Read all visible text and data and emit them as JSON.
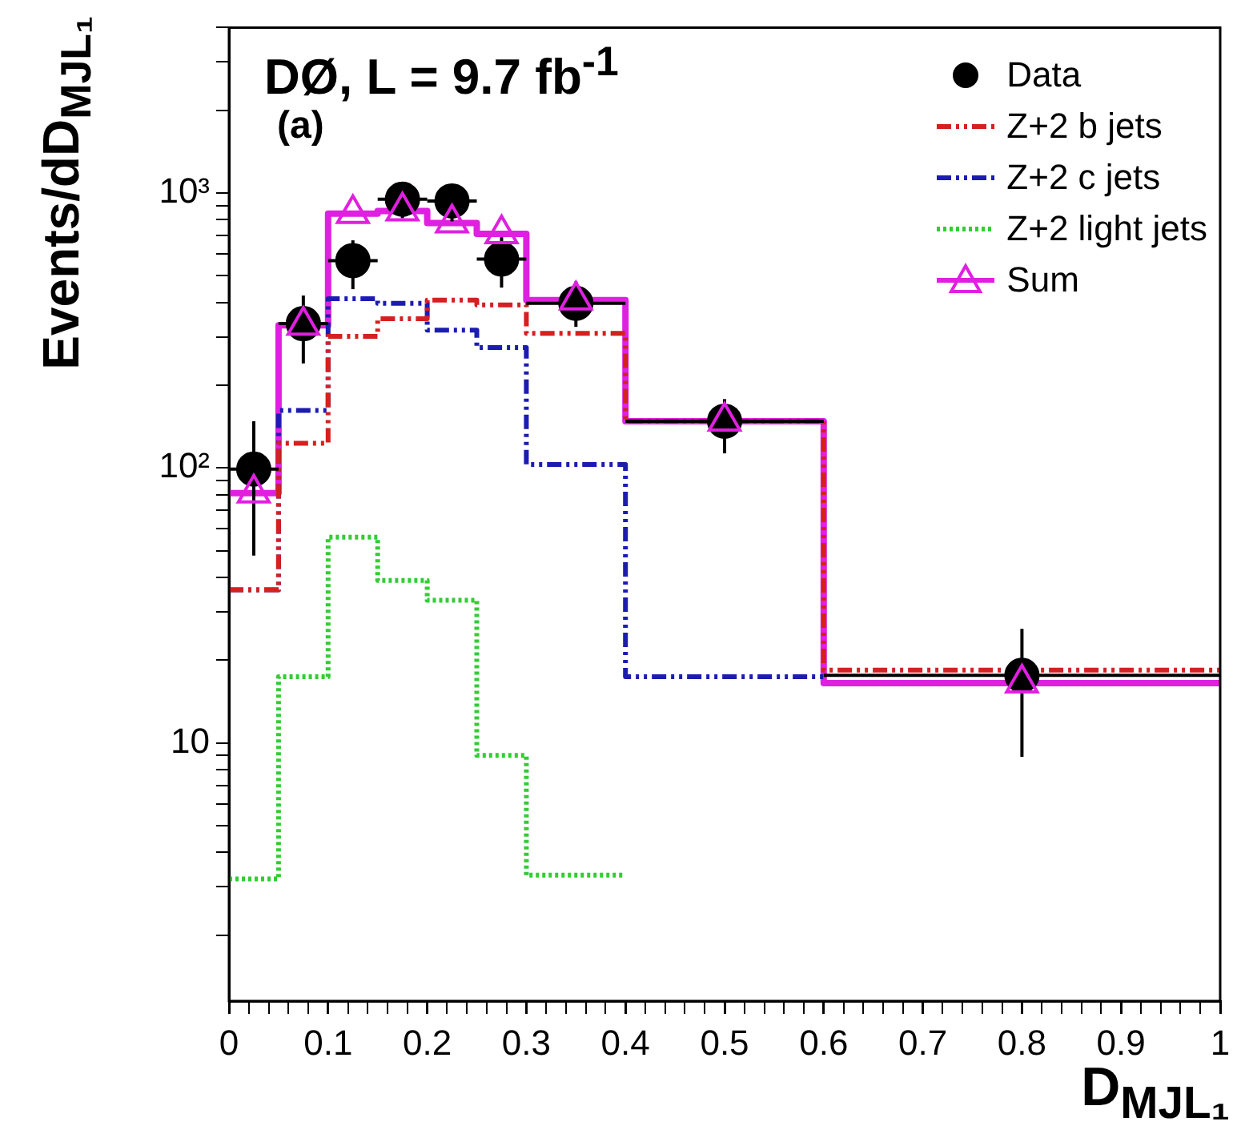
{
  "chart_data": {
    "type": "step",
    "title": "DØ, L = 9.7 fb$^{-1}$",
    "annotations": [
      "(a)"
    ],
    "xlabel": "D$_{MJL₁}$",
    "ylabel": "Events/dD$_{MJL₁}$",
    "xlim": [
      0,
      1
    ],
    "ylim": [
      1.15,
      4000
    ],
    "log": "y",
    "grid": false,
    "legend": "top right",
    "xticks": [
      0,
      {
        "value": 0.02,
        "label": null
      },
      {
        "value": 0.04,
        "label": null
      },
      {
        "value": 0.06,
        "label": null
      },
      {
        "value": 0.08,
        "label": null
      },
      0.1,
      {
        "value": 0.12,
        "label": null
      },
      {
        "value": 0.14,
        "label": null
      },
      {
        "value": 0.16,
        "label": null
      },
      {
        "value": 0.18,
        "label": null
      },
      0.2,
      {
        "value": 0.22,
        "label": null
      },
      {
        "value": 0.24,
        "label": null
      },
      {
        "value": 0.26,
        "label": null
      },
      {
        "value": 0.28,
        "label": null
      },
      0.3,
      {
        "value": 0.32,
        "label": null
      },
      {
        "value": 0.34,
        "label": null
      },
      {
        "value": 0.36,
        "label": null
      },
      {
        "value": 0.38,
        "label": null
      },
      0.4,
      {
        "value": 0.42,
        "label": null
      },
      {
        "value": 0.44,
        "label": null
      },
      {
        "value": 0.46,
        "label": null
      },
      {
        "value": 0.48,
        "label": null
      },
      0.5,
      {
        "value": 0.52,
        "label": null
      },
      {
        "value": 0.54,
        "label": null
      },
      {
        "value": 0.56,
        "label": null
      },
      {
        "value": 0.58,
        "label": null
      },
      0.6,
      {
        "value": 0.62,
        "label": null
      },
      {
        "value": 0.64,
        "label": null
      },
      {
        "value": 0.66,
        "label": null
      },
      {
        "value": 0.68,
        "label": null
      },
      0.7,
      {
        "value": 0.72,
        "label": null
      },
      {
        "value": 0.74,
        "label": null
      },
      {
        "value": 0.76,
        "label": null
      },
      {
        "value": 0.78,
        "label": null
      },
      0.8,
      {
        "value": 0.82,
        "label": null
      },
      {
        "value": 0.84,
        "label": null
      },
      {
        "value": 0.86,
        "label": null
      },
      {
        "value": 0.88,
        "label": null
      },
      0.9,
      {
        "value": 0.92,
        "label": null
      },
      {
        "value": 0.94,
        "label": null
      },
      {
        "value": 0.96,
        "label": null
      },
      {
        "value": 0.98,
        "label": null
      },
      1
    ],
    "yticks": [
      {
        "value": 2,
        "label": null
      },
      {
        "value": 3,
        "label": null
      },
      {
        "value": 4,
        "label": null
      },
      {
        "value": 5,
        "label": null
      },
      {
        "value": 6,
        "label": null
      },
      {
        "value": 7,
        "label": null
      },
      {
        "value": 8,
        "label": null
      },
      {
        "value": 9,
        "label": null
      },
      10,
      {
        "value": 20,
        "label": null
      },
      {
        "value": 30,
        "label": null
      },
      {
        "value": 40,
        "label": null
      },
      {
        "value": 50,
        "label": null
      },
      {
        "value": 60,
        "label": null
      },
      {
        "value": 70,
        "label": null
      },
      {
        "value": 80,
        "label": null
      },
      {
        "value": 90,
        "label": null
      },
      {
        "value": 100,
        "label": "10²"
      },
      {
        "value": 200,
        "label": null
      },
      {
        "value": 300,
        "label": null
      },
      {
        "value": 400,
        "label": null
      },
      {
        "value": 500,
        "label": null
      },
      {
        "value": 600,
        "label": null
      },
      {
        "value": 700,
        "label": null
      },
      {
        "value": 800,
        "label": null
      },
      {
        "value": 900,
        "label": null
      },
      {
        "value": 1000,
        "label": "10³"
      },
      {
        "value": 2000,
        "label": null
      },
      {
        "value": 3000,
        "label": null
      },
      {
        "value": 4000,
        "label": null
      }
    ],
    "series": [
      {
        "name": "Data",
        "type": "scatter",
        "color": "#000000",
        "marker": "circle",
        "x": [
          0.025,
          0.075,
          0.125,
          0.175,
          0.225,
          0.275,
          0.35,
          0.5,
          0.8
        ],
        "values": [
          99,
          335,
          568,
          950,
          936,
          575,
          397,
          148,
          17.6
        ],
        "errors": [
          [
            48,
            148
          ],
          [
            240,
            424
          ],
          [
            447,
            673
          ],
          [
            810,
            1097
          ],
          [
            789,
            1068
          ],
          [
            453,
            691
          ],
          [
            326,
            477
          ],
          [
            113,
            178
          ],
          [
            8.9,
            26
          ]
        ],
        "xerrors": [
          0.025,
          0.025,
          0.025,
          0.025,
          0.025,
          0.025,
          0.05,
          0.1,
          0.2
        ]
      },
      {
        "name": "Z+2 b jets",
        "type": "step",
        "color": "#d42020",
        "line_style": "dashed",
        "marker": "none",
        "x": [
          0,
          0.05,
          0.1,
          0.15,
          0.2,
          0.25,
          0.3,
          0.4,
          0.6,
          1
        ],
        "values": [
          36,
          123,
          301,
          349,
          408,
          392,
          309,
          148,
          18.4,
          18.4
        ]
      },
      {
        "name": "Z+2 c jets",
        "type": "step",
        "color": "#1c1cb0",
        "line_style": "dashed",
        "marker": "none",
        "x": [
          0,
          0.05,
          0.1,
          0.15,
          0.2,
          0.25,
          0.3,
          0.4,
          0.6
        ],
        "values": [
          36,
          162,
          413,
          397,
          317,
          274,
          103,
          17.4,
          17.4
        ]
      },
      {
        "name": "Z+2 light jets",
        "type": "step",
        "color": "#33cc33",
        "line_style": "dotted",
        "marker": "none",
        "x": [
          0,
          0.05,
          0.1,
          0.15,
          0.2,
          0.25,
          0.3,
          0.4
        ],
        "values": [
          3.2,
          17.4,
          56,
          39,
          33,
          9.0,
          3.3,
          3.3
        ]
      },
      {
        "name": "Sum",
        "type": "step",
        "color": "#e020e0",
        "line_style": "solid",
        "marker": "none",
        "x": [
          0,
          0.05,
          0.1,
          0.15,
          0.2,
          0.25,
          0.3,
          0.4,
          0.6,
          1
        ],
        "values": [
          81,
          330,
          842,
          860,
          778,
          710,
          408,
          148,
          16.5,
          16.5
        ]
      },
      {
        "type": "scatter",
        "color": "#e020e0",
        "marker": "triangle",
        "x": [
          0.025,
          0.075,
          0.125,
          0.175,
          0.225,
          0.275,
          0.35,
          0.5,
          0.8
        ],
        "values": [
          81,
          330,
          842,
          860,
          778,
          710,
          408,
          148,
          16.5
        ]
      }
    ]
  }
}
